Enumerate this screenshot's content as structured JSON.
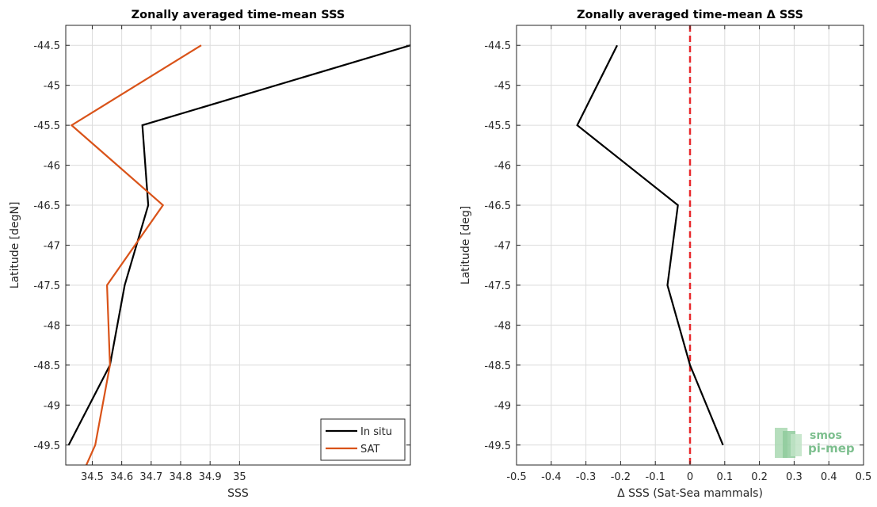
{
  "chart_data": [
    {
      "type": "line",
      "title": "Zonally averaged time-mean SSS",
      "xlabel": "SSS",
      "ylabel": "Latitude [degN]",
      "xlim": [
        34.41,
        35.58
      ],
      "ylim": [
        -49.75,
        -44.25
      ],
      "xticks": [
        34.5,
        34.6,
        34.7,
        34.8,
        34.9,
        35
      ],
      "xtick_labels": [
        "34.5",
        "34.6",
        "34.7",
        "34.8",
        "34.9",
        "35"
      ],
      "yticks": [
        -44.5,
        -45,
        -45.5,
        -46,
        -46.5,
        -47,
        -47.5,
        -48,
        -48.5,
        -49,
        -49.5
      ],
      "ytick_labels": [
        "-44.5",
        "-45",
        "-45.5",
        "-46",
        "-46.5",
        "-47",
        "-47.5",
        "-48",
        "-48.5",
        "-49",
        "-49.5"
      ],
      "grid": true,
      "legend_position": "bottom-right",
      "series": [
        {
          "name": "In situ",
          "color": "#000000",
          "x": [
            35.58,
            34.67,
            34.69,
            34.61,
            34.56,
            34.42
          ],
          "y": [
            -44.5,
            -45.5,
            -46.5,
            -47.5,
            -48.5,
            -49.5
          ]
        },
        {
          "name": "SAT",
          "color": "#d95319",
          "x": [
            34.87,
            34.43,
            34.74,
            34.55,
            34.56,
            34.51,
            34.48
          ],
          "y": [
            -44.5,
            -45.5,
            -46.5,
            -47.5,
            -48.5,
            -49.5,
            -49.75
          ]
        }
      ]
    },
    {
      "type": "line",
      "title": "Zonally averaged time-mean Δ SSS",
      "xlabel": "Δ SSS (Sat-Sea mammals)",
      "ylabel": "Latitude [deg]",
      "xlim": [
        -0.5,
        0.5
      ],
      "ylim": [
        -49.75,
        -44.25
      ],
      "xticks": [
        -0.5,
        -0.4,
        -0.3,
        -0.2,
        -0.1,
        0,
        0.1,
        0.2,
        0.3,
        0.4,
        0.5
      ],
      "xtick_labels": [
        "-0.5",
        "-0.4",
        "-0.3",
        "-0.2",
        "-0.1",
        "0",
        "0.1",
        "0.2",
        "0.3",
        "0.4",
        "0.5"
      ],
      "yticks": [
        -44.5,
        -45,
        -45.5,
        -46,
        -46.5,
        -47,
        -47.5,
        -48,
        -48.5,
        -49,
        -49.5
      ],
      "ytick_labels": [
        "-44.5",
        "-45",
        "-45.5",
        "-46",
        "-46.5",
        "-47",
        "-47.5",
        "-48",
        "-48.5",
        "-49",
        "-49.5"
      ],
      "grid": true,
      "reference_line": {
        "x": 0,
        "color": "#e8282b",
        "style": "dashed"
      },
      "series": [
        {
          "color": "#000000",
          "x": [
            -0.21,
            -0.325,
            -0.035,
            -0.065,
            0.0,
            0.095
          ],
          "y": [
            -44.5,
            -45.5,
            -46.5,
            -47.5,
            -48.5,
            -49.5
          ]
        }
      ]
    }
  ],
  "logo": {
    "line1": "smos",
    "line2": "pi-mep"
  }
}
